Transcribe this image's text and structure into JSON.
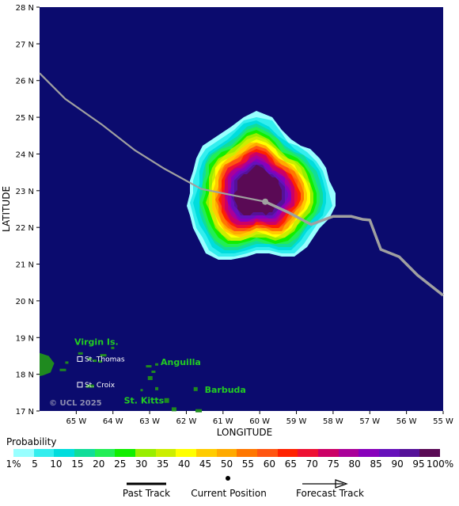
{
  "map": {
    "ylabel": "LATITUDE",
    "xlabel": "LONGITUDE",
    "lat_ticks": [
      "28 N",
      "27 N",
      "26 N",
      "25 N",
      "24 N",
      "23 N",
      "22 N",
      "21 N",
      "20 N",
      "19 N",
      "18 N",
      "17 N"
    ],
    "lon_ticks": [
      "65 W",
      "64 W",
      "63 W",
      "62 W",
      "61 W",
      "60 W",
      "59 W",
      "58 W",
      "57 W",
      "56 W",
      "55 W"
    ],
    "lat_range": [
      17,
      28
    ],
    "lon_range": [
      -66,
      -55
    ],
    "ocean_color": "#0b0b6e",
    "land_color": "#1f8a1f",
    "track_color": "#a0a0a0",
    "current_position": {
      "lon": -59.85,
      "lat": 22.7
    },
    "past_track": [
      {
        "lon": -66.0,
        "lat": 26.2
      },
      {
        "lon": -65.3,
        "lat": 25.5
      },
      {
        "lon": -64.3,
        "lat": 24.8
      },
      {
        "lon": -63.4,
        "lat": 24.1
      },
      {
        "lon": -62.6,
        "lat": 23.6
      },
      {
        "lon": -61.6,
        "lat": 23.05
      },
      {
        "lon": -60.6,
        "lat": 22.85
      },
      {
        "lon": -59.85,
        "lat": 22.7
      }
    ],
    "forecast_track": [
      {
        "lon": -59.85,
        "lat": 22.7
      },
      {
        "lon": -59.2,
        "lat": 22.4
      },
      {
        "lon": -58.6,
        "lat": 22.08
      },
      {
        "lon": -58.0,
        "lat": 22.3
      },
      {
        "lon": -57.5,
        "lat": 22.3
      },
      {
        "lon": -57.2,
        "lat": 22.22
      },
      {
        "lon": -57.0,
        "lat": 22.2
      },
      {
        "lon": -56.7,
        "lat": 21.4
      },
      {
        "lon": -56.2,
        "lat": 21.2
      },
      {
        "lon": -55.7,
        "lat": 20.7
      },
      {
        "lon": -55.0,
        "lat": 20.15
      }
    ],
    "probability_rings": [
      {
        "level": "1%",
        "radius_deg": 1.95
      },
      {
        "level": "5",
        "radius_deg": 1.85
      },
      {
        "level": "10",
        "radius_deg": 1.75
      },
      {
        "level": "15",
        "radius_deg": 1.65
      },
      {
        "level": "20",
        "radius_deg": 1.58
      },
      {
        "level": "25",
        "radius_deg": 1.5
      },
      {
        "level": "30",
        "radius_deg": 1.42
      },
      {
        "level": "35",
        "radius_deg": 1.36
      },
      {
        "level": "40",
        "radius_deg": 1.3
      },
      {
        "level": "45",
        "radius_deg": 1.25
      },
      {
        "level": "50",
        "radius_deg": 1.2
      },
      {
        "level": "55",
        "radius_deg": 1.15
      },
      {
        "level": "60",
        "radius_deg": 1.1
      },
      {
        "level": "65",
        "radius_deg": 1.05
      },
      {
        "level": "70",
        "radius_deg": 1.0
      },
      {
        "level": "75",
        "radius_deg": 0.95
      },
      {
        "level": "80",
        "radius_deg": 0.88
      },
      {
        "level": "85",
        "radius_deg": 0.82
      },
      {
        "level": "90",
        "radius_deg": 0.76
      },
      {
        "level": "95",
        "radius_deg": 0.7
      },
      {
        "level": "100%",
        "radius_deg": 0.64
      }
    ],
    "islands_labels": [
      {
        "name": "Virgin Is.",
        "lon": -65.05,
        "lat": 18.8,
        "kind": "region"
      },
      {
        "name": "Anguilla",
        "lon": -62.7,
        "lat": 18.25,
        "kind": "region"
      },
      {
        "name": "Barbuda",
        "lon": -61.5,
        "lat": 17.5,
        "kind": "region"
      },
      {
        "name": "St. Kitts",
        "lon": -63.7,
        "lat": 17.2,
        "kind": "region"
      },
      {
        "name": "St. Thomas",
        "lon": -64.75,
        "lat": 18.35,
        "kind": "town"
      },
      {
        "name": "St. Croix",
        "lon": -64.75,
        "lat": 17.65,
        "kind": "town"
      }
    ],
    "copyright": "© UCL 2025"
  },
  "legend": {
    "title": "Probability",
    "levels": [
      "1%",
      "5",
      "10",
      "15",
      "20",
      "25",
      "30",
      "35",
      "40",
      "45",
      "50",
      "55",
      "60",
      "65",
      "70",
      "75",
      "80",
      "85",
      "90",
      "95",
      "100%"
    ],
    "colors": [
      "#98ffff",
      "#33eeee",
      "#00dddd",
      "#11dd99",
      "#22ee55",
      "#11ee00",
      "#99ee00",
      "#ccee00",
      "#ffff00",
      "#ffcc00",
      "#ffaa00",
      "#ff7700",
      "#ff5511",
      "#ff2200",
      "#ee1133",
      "#cc0066",
      "#aa0099",
      "#8800bb",
      "#6611bb",
      "#551199",
      "#5a0a55"
    ],
    "past_track_label": "Past Track",
    "current_position_label": "Current Position",
    "forecast_track_label": "Forecast Track"
  }
}
